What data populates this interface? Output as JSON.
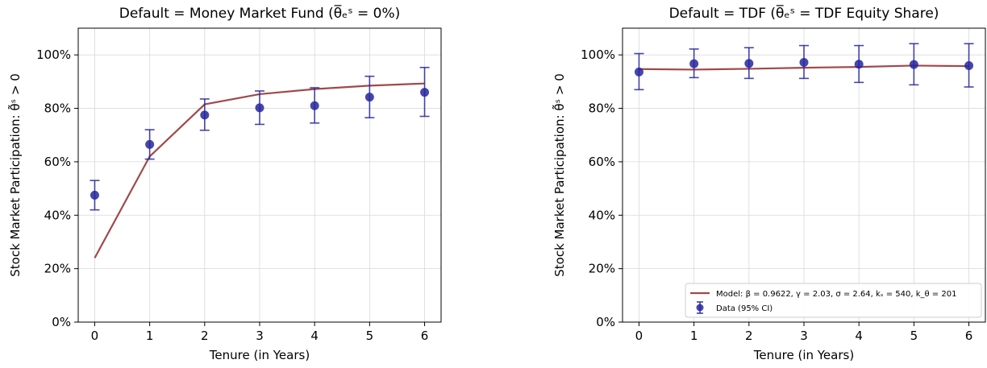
{
  "colors": {
    "model_line": "#a0494b",
    "data_marker": "#26269c",
    "grid": "#d9d9d9",
    "axis": "#000000"
  },
  "chart_data": [
    {
      "type": "line",
      "title": "Default = Money Market Fund (θ̅ₑˢ = 0%)",
      "xlabel": "Tenure (in Years)",
      "ylabel": "Stock Market Participation: θ̃ˢ > 0",
      "x": [
        0,
        1,
        2,
        3,
        4,
        5,
        6
      ],
      "x_tick_labels": [
        "0",
        "1",
        "2",
        "3",
        "4",
        "5",
        "6"
      ],
      "y_tick_values": [
        0,
        0.2,
        0.4,
        0.6,
        0.8,
        1.0
      ],
      "y_tick_labels": [
        "0%",
        "20%",
        "40%",
        "60%",
        "80%",
        "100%"
      ],
      "xlim": [
        -0.3,
        6.3
      ],
      "ylim": [
        0,
        1.1
      ],
      "grid": true,
      "series": [
        {
          "name": "Model: β = 0.9622, γ = 2.03, σ = 2.64, kₛ = 540, k_θ = 201",
          "kind": "line",
          "values": [
            0.24,
            0.62,
            0.815,
            0.853,
            0.872,
            0.885,
            0.893
          ]
        },
        {
          "name": "Data (95% CI)",
          "kind": "errorbar",
          "values": [
            0.475,
            0.665,
            0.775,
            0.802,
            0.81,
            0.842,
            0.86
          ],
          "ci_low": [
            0.42,
            0.61,
            0.718,
            0.74,
            0.745,
            0.765,
            0.77
          ],
          "ci_high": [
            0.53,
            0.72,
            0.835,
            0.865,
            0.877,
            0.92,
            0.953
          ]
        }
      ]
    },
    {
      "type": "line",
      "title": "Default = TDF (θ̅ₑˢ = TDF Equity Share)",
      "xlabel": "Tenure (in Years)",
      "ylabel": "Stock Market Participation: θ̃ˢ > 0",
      "x": [
        0,
        1,
        2,
        3,
        4,
        5,
        6
      ],
      "x_tick_labels": [
        "0",
        "1",
        "2",
        "3",
        "4",
        "5",
        "6"
      ],
      "y_tick_values": [
        0,
        0.2,
        0.4,
        0.6,
        0.8,
        1.0
      ],
      "y_tick_labels": [
        "0%",
        "20%",
        "40%",
        "60%",
        "80%",
        "100%"
      ],
      "xlim": [
        -0.3,
        6.3
      ],
      "ylim": [
        0,
        1.1
      ],
      "grid": true,
      "legend_position": "lower-right",
      "series": [
        {
          "name": "Model: β = 0.9622, γ = 2.03, σ = 2.64, kₛ = 540, k_θ = 201",
          "kind": "line",
          "values": [
            0.947,
            0.945,
            0.948,
            0.952,
            0.955,
            0.96,
            0.958
          ]
        },
        {
          "name": "Data (95% CI)",
          "kind": "errorbar",
          "values": [
            0.936,
            0.967,
            0.968,
            0.972,
            0.965,
            0.964,
            0.96
          ],
          "ci_low": [
            0.87,
            0.915,
            0.912,
            0.912,
            0.897,
            0.888,
            0.88
          ],
          "ci_high": [
            1.005,
            1.022,
            1.027,
            1.035,
            1.035,
            1.042,
            1.042
          ]
        }
      ]
    }
  ]
}
